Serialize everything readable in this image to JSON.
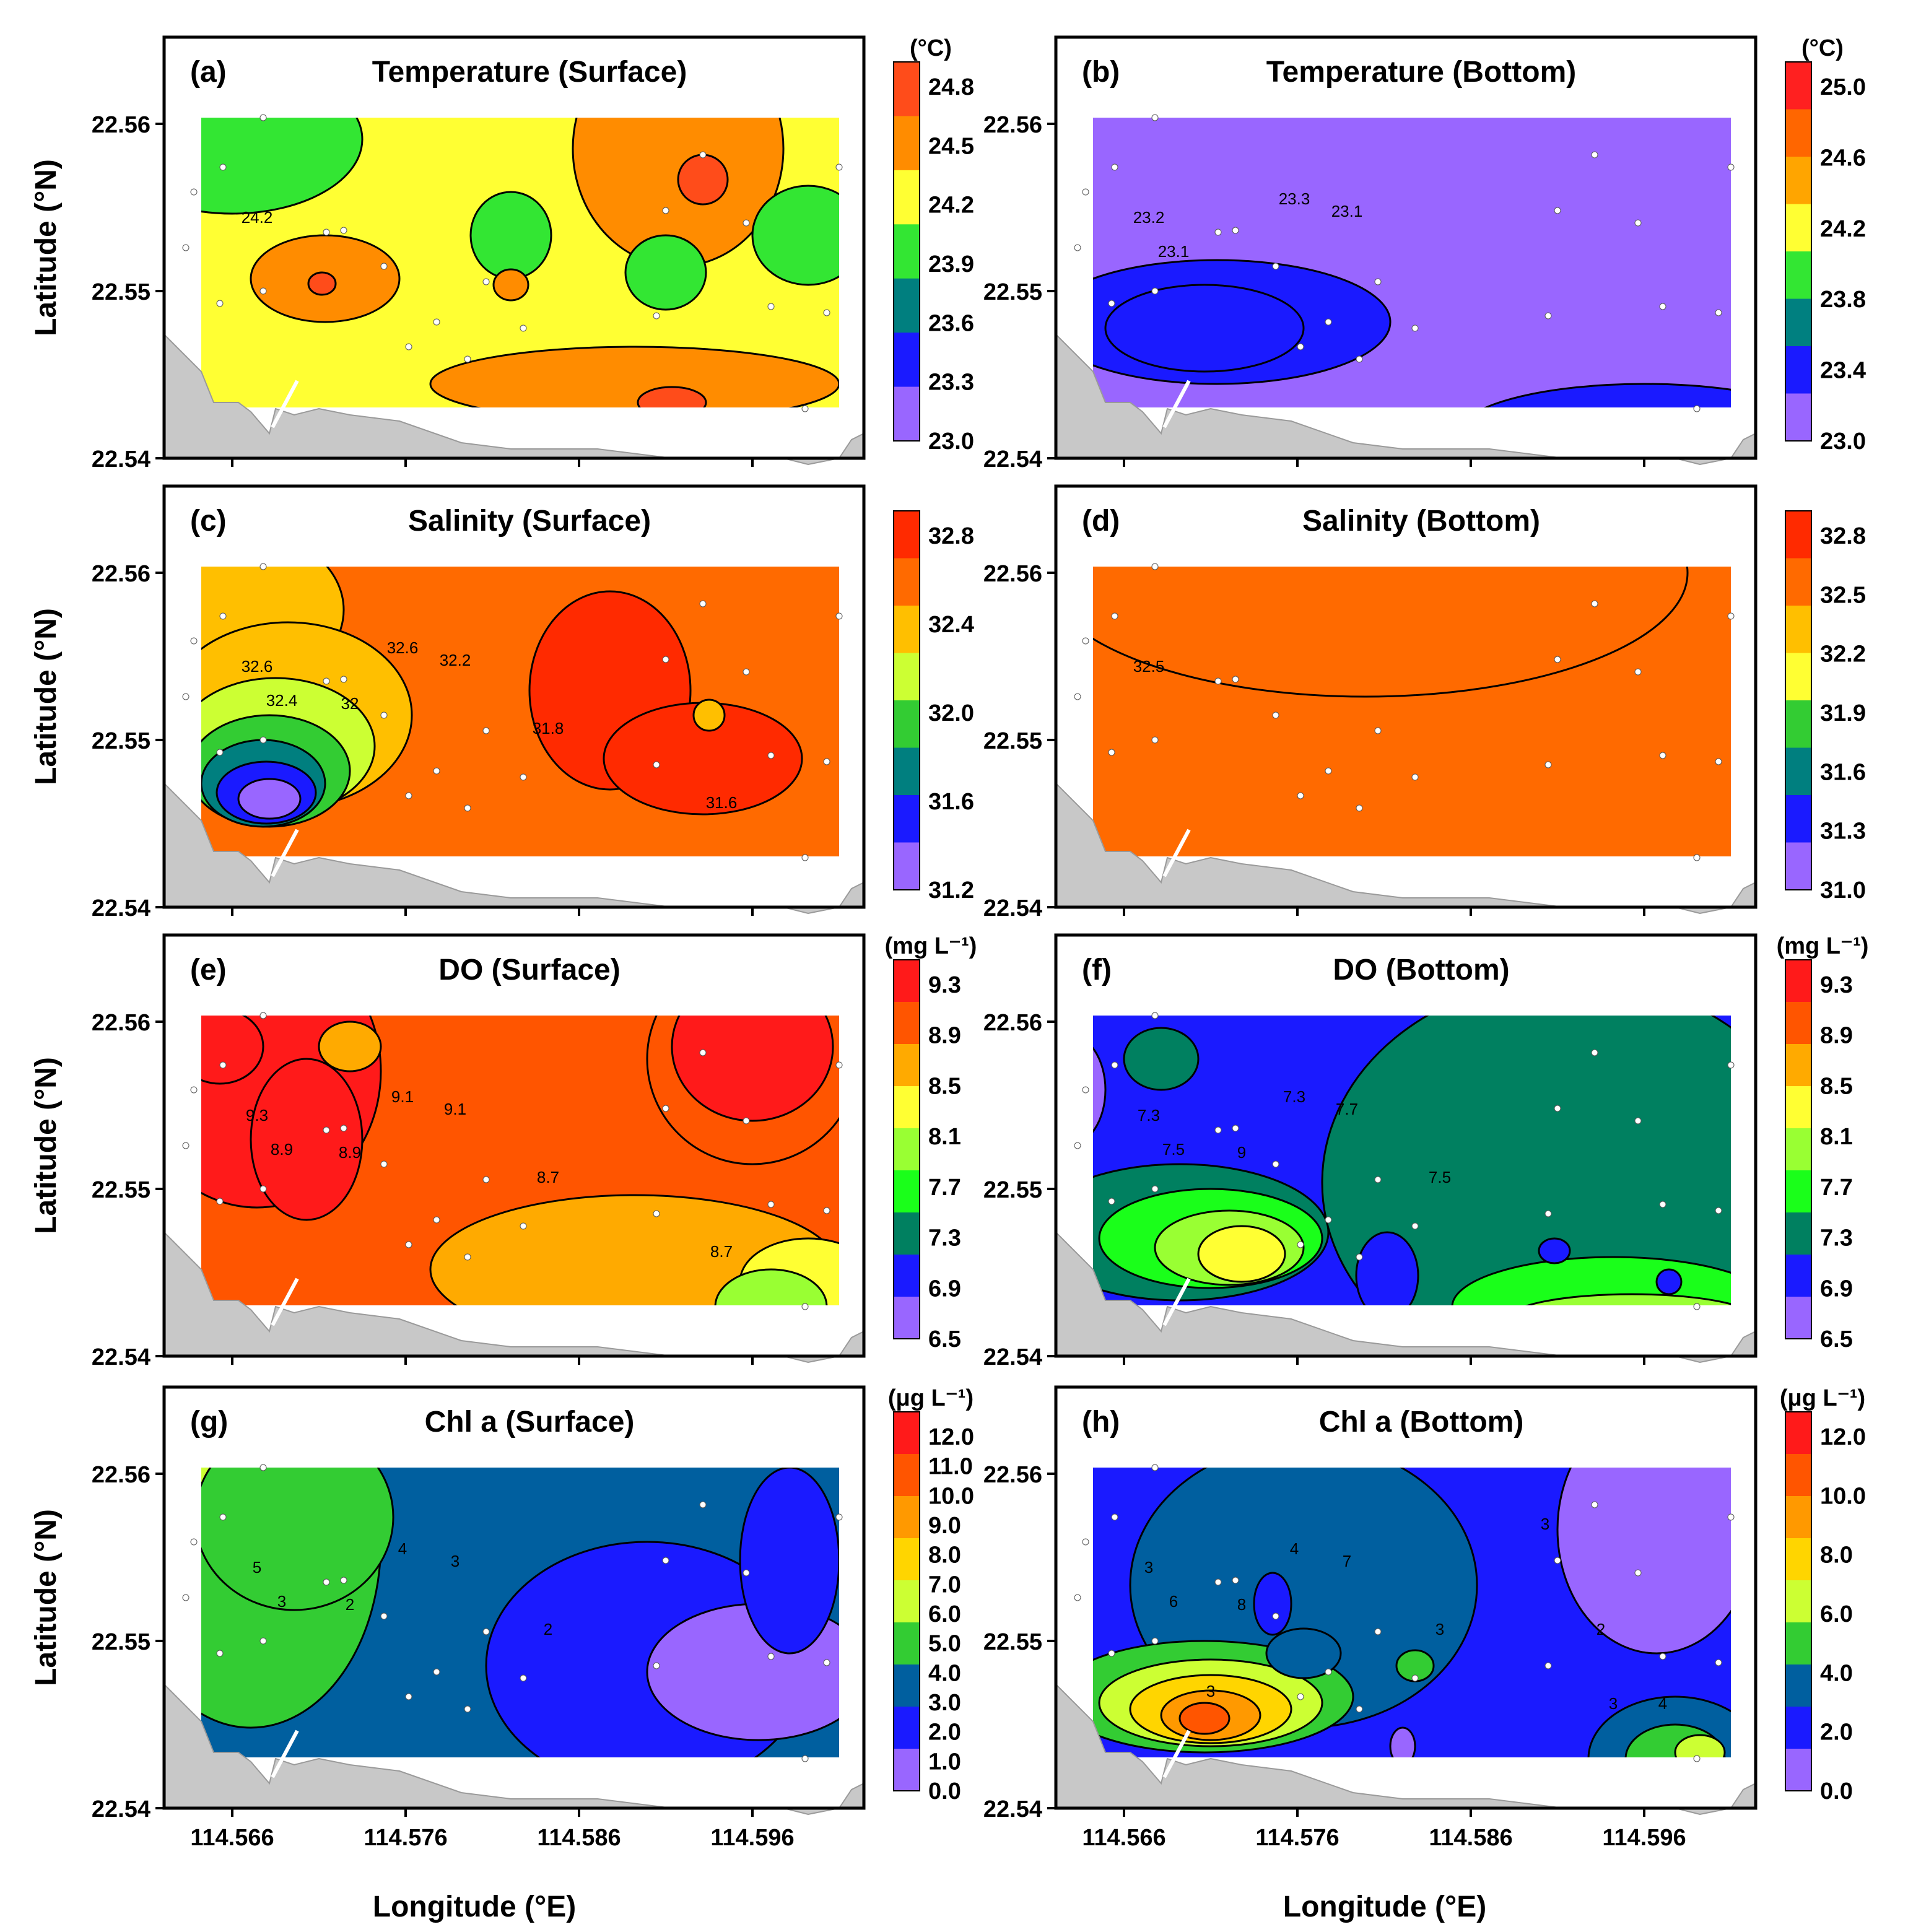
{
  "figure": {
    "x_axis_label": "Longitude (°E)",
    "y_axis_label": "Latitude (°N)",
    "x_ticks": [
      "114.566",
      "114.576",
      "114.586",
      "114.596"
    ],
    "y_ticks": [
      "22.56",
      "22.55",
      "22.54"
    ],
    "land_color": "#c8c8c8"
  },
  "panels": [
    {
      "letter": "(a)",
      "title": "Temperature (Surface)",
      "unit": "(°C)",
      "scale": "temp",
      "colorbar_ticks": [
        "24.8",
        "24.5",
        "24.2",
        "23.9",
        "23.6",
        "23.3",
        "23.0"
      ],
      "colorbar_colors": [
        "#ff4c1a",
        "#ff8c00",
        "#ffff33",
        "#33e633",
        "#007f7f",
        "#1a1aff",
        "#9966ff"
      ],
      "contour_labels": [
        "24.2"
      ]
    },
    {
      "letter": "(b)",
      "title": "Temperature (Bottom)",
      "unit": "(°C)",
      "scale": "temp_fine",
      "colorbar_ticks": [
        "25.0",
        "24.6",
        "24.2",
        "23.8",
        "23.4",
        "23.0"
      ],
      "colorbar_colors": [
        "#ff2020",
        "#ff6600",
        "#ffa500",
        "#ffff33",
        "#33e633",
        "#008080",
        "#1a1aff",
        "#9966ff"
      ],
      "contour_labels": [
        "23.2",
        "23.3",
        "23.1",
        "23.1"
      ]
    },
    {
      "letter": "(c)",
      "title": "Salinity (Surface)",
      "unit": "",
      "scale": "sal",
      "colorbar_ticks": [
        "32.8",
        "32.4",
        "32.0",
        "31.6",
        "31.2"
      ],
      "colorbar_colors": [
        "#ff2a00",
        "#ff6a00",
        "#ffbf00",
        "#ccff33",
        "#33cc33",
        "#007f7f",
        "#1a1aff",
        "#9966ff"
      ],
      "contour_labels": [
        "32.6",
        "32.6",
        "32.4",
        "32.2",
        "32",
        "31.8",
        "31.6"
      ]
    },
    {
      "letter": "(d)",
      "title": "Salinity (Bottom)",
      "unit": "",
      "scale": "sal_fine",
      "colorbar_ticks": [
        "32.8",
        "32.5",
        "32.2",
        "31.9",
        "31.6",
        "31.3",
        "31.0"
      ],
      "colorbar_colors": [
        "#ff2a00",
        "#ff6a00",
        "#ffbf00",
        "#ffff33",
        "#33cc33",
        "#007f7f",
        "#1a1aff",
        "#9966ff"
      ],
      "contour_labels": [
        "32.5"
      ]
    },
    {
      "letter": "(e)",
      "title": "DO (Surface)",
      "unit": "(mg L⁻¹)",
      "scale": "do",
      "colorbar_ticks": [
        "9.3",
        "8.9",
        "8.5",
        "8.1",
        "7.7",
        "7.3",
        "6.9",
        "6.5"
      ],
      "colorbar_colors": [
        "#ff1a1a",
        "#ff5500",
        "#ffaa00",
        "#ffff33",
        "#99ff33",
        "#1aff1a",
        "#008060",
        "#1a1aff",
        "#9966ff"
      ],
      "contour_labels": [
        "9.3",
        "9.1",
        "8.9",
        "9.1",
        "8.9",
        "8.7",
        "8.7"
      ]
    },
    {
      "letter": "(f)",
      "title": "DO (Bottom)",
      "unit": "(mg L⁻¹)",
      "scale": "do",
      "colorbar_ticks": [
        "9.3",
        "8.9",
        "8.5",
        "8.1",
        "7.7",
        "7.3",
        "6.9",
        "6.5"
      ],
      "colorbar_colors": [
        "#ff1a1a",
        "#ff5500",
        "#ffaa00",
        "#ffff33",
        "#99ff33",
        "#1aff1a",
        "#008060",
        "#1a1aff",
        "#9966ff"
      ],
      "contour_labels": [
        "7.3",
        "7.3",
        "7.5",
        "7.7",
        "9",
        "7.5"
      ]
    },
    {
      "letter": "(g)",
      "title": "Chl a (Surface)",
      "unit": "(μg L⁻¹)",
      "scale": "chl",
      "colorbar_ticks": [
        "12.0",
        "11.0",
        "10.0",
        "9.0",
        "8.0",
        "7.0",
        "6.0",
        "5.0",
        "4.0",
        "3.0",
        "2.0",
        "1.0",
        "0.0"
      ],
      "colorbar_colors": [
        "#ff1a1a",
        "#ff5500",
        "#ff9900",
        "#ffd500",
        "#ccff33",
        "#33cc33",
        "#005f9f",
        "#1a1aff",
        "#9966ff"
      ],
      "contour_labels": [
        "5",
        "4",
        "3",
        "3",
        "2",
        "2"
      ]
    },
    {
      "letter": "(h)",
      "title": "Chl a (Bottom)",
      "unit": "(μg L⁻¹)",
      "scale": "chl",
      "colorbar_ticks": [
        "12.0",
        "10.0",
        "8.0",
        "6.0",
        "4.0",
        "2.0",
        "0.0"
      ],
      "colorbar_colors": [
        "#ff1a1a",
        "#ff5500",
        "#ff9900",
        "#ffd500",
        "#ccff33",
        "#33cc33",
        "#005f9f",
        "#1a1aff",
        "#9966ff"
      ],
      "contour_labels": [
        "3",
        "4",
        "6",
        "7",
        "8",
        "3",
        "3",
        "3",
        "2",
        "3",
        "4"
      ]
    }
  ]
}
